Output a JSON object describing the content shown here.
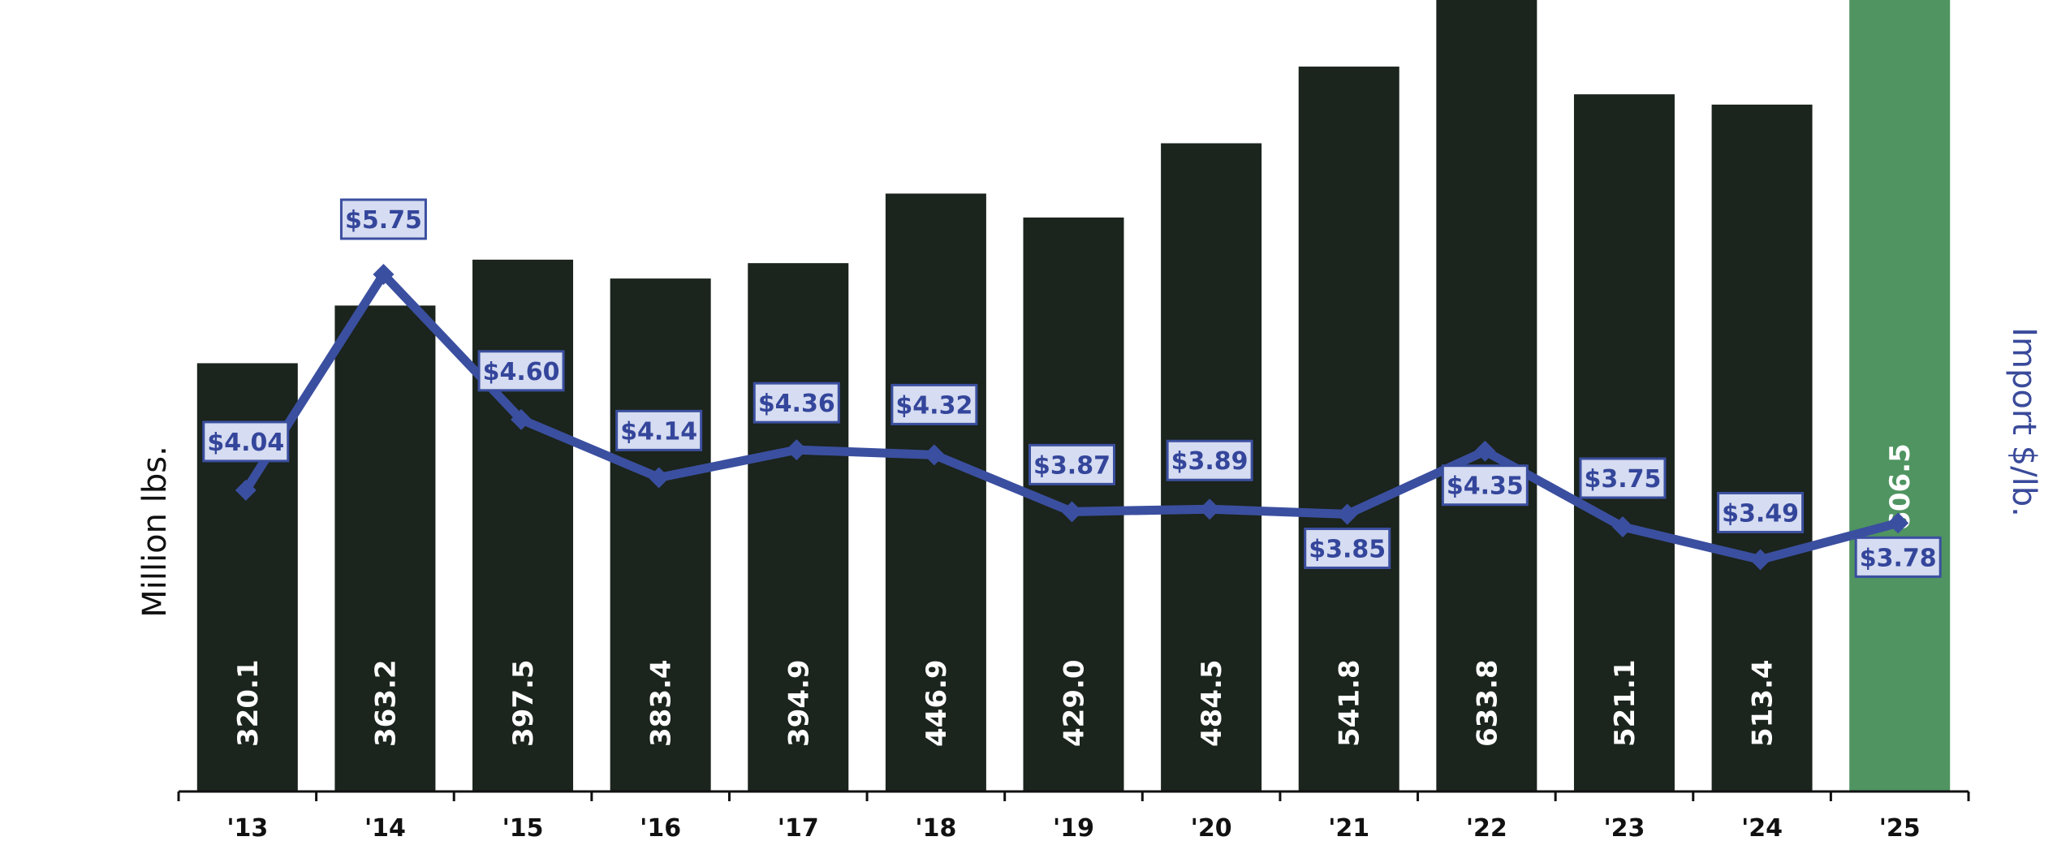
{
  "chart_data": {
    "type": "bar",
    "categories": [
      "'13",
      "'14",
      "'15",
      "'16",
      "'17",
      "'18",
      "'19",
      "'20",
      "'21",
      "'22",
      "'23",
      "'24",
      "'25"
    ],
    "ylabel": "Million lbs.",
    "y2label": "Import $/lb.",
    "ylim": [
      0,
      800
    ],
    "y2lim": [
      0,
      7
    ],
    "grid": false,
    "series": [
      {
        "type": "bar",
        "values": [
          320.1,
          363.2,
          397.5,
          383.4,
          394.9,
          446.9,
          429.0,
          484.5,
          541.8,
          633.8,
          521.1,
          513.4,
          606.5
        ],
        "labels": [
          "320.1",
          "363.2",
          "397.5",
          "383.4",
          "394.9",
          "446.9",
          "429.0",
          "484.5",
          "541.8",
          "633.8",
          "521.1",
          "513.4",
          "606.5"
        ]
      },
      {
        "type": "line",
        "axis": "right",
        "values": [
          4.04,
          5.75,
          4.6,
          4.14,
          4.36,
          4.32,
          3.87,
          3.89,
          3.85,
          4.35,
          3.75,
          3.49,
          3.78
        ],
        "labels": [
          "$4.04",
          "$5.75",
          "$4.60",
          "$4.14",
          "$4.36",
          "$4.32",
          "$3.87",
          "$3.89",
          "$3.85",
          "$4.35",
          "$3.75",
          "$3.49",
          "$3.78"
        ]
      }
    ],
    "colors": {
      "bar": "#1b241d",
      "bar_highlight": "#4f9461",
      "line": "#3b4fa0",
      "label_box_fill": "#d6dcf1",
      "label_box_stroke": "#3b4fa0"
    }
  }
}
